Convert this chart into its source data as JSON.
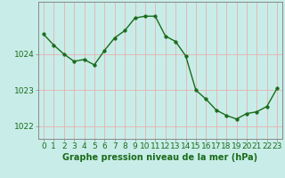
{
  "x": [
    0,
    1,
    2,
    3,
    4,
    5,
    6,
    7,
    8,
    9,
    10,
    11,
    12,
    13,
    14,
    15,
    16,
    17,
    18,
    19,
    20,
    21,
    22,
    23
  ],
  "y": [
    1024.55,
    1024.25,
    1024.0,
    1023.8,
    1023.85,
    1023.7,
    1024.1,
    1024.45,
    1024.65,
    1025.0,
    1025.05,
    1025.05,
    1024.5,
    1024.35,
    1023.95,
    1023.0,
    1022.75,
    1022.45,
    1022.3,
    1022.2,
    1022.35,
    1022.4,
    1022.55,
    1023.05
  ],
  "line_color": "#1a6b1a",
  "marker": "o",
  "markersize": 2.5,
  "linewidth": 1.0,
  "bg_color": "#c8ede8",
  "grid_color": "#e8b0b0",
  "xlabel": "Graphe pression niveau de la mer (hPa)",
  "xlabel_fontsize": 7,
  "xlabel_color": "#1a6b1a",
  "xlabel_fontweight": "bold",
  "yticks": [
    1022,
    1023,
    1024
  ],
  "ylim": [
    1021.65,
    1025.45
  ],
  "xlim": [
    -0.5,
    23.5
  ],
  "tick_fontsize": 6.5,
  "tick_color": "#1a6b1a",
  "xtick_labels": [
    "0",
    "1",
    "2",
    "3",
    "4",
    "5",
    "6",
    "7",
    "8",
    "9",
    "10",
    "11",
    "12",
    "13",
    "14",
    "15",
    "16",
    "17",
    "18",
    "19",
    "20",
    "21",
    "22",
    "23"
  ]
}
